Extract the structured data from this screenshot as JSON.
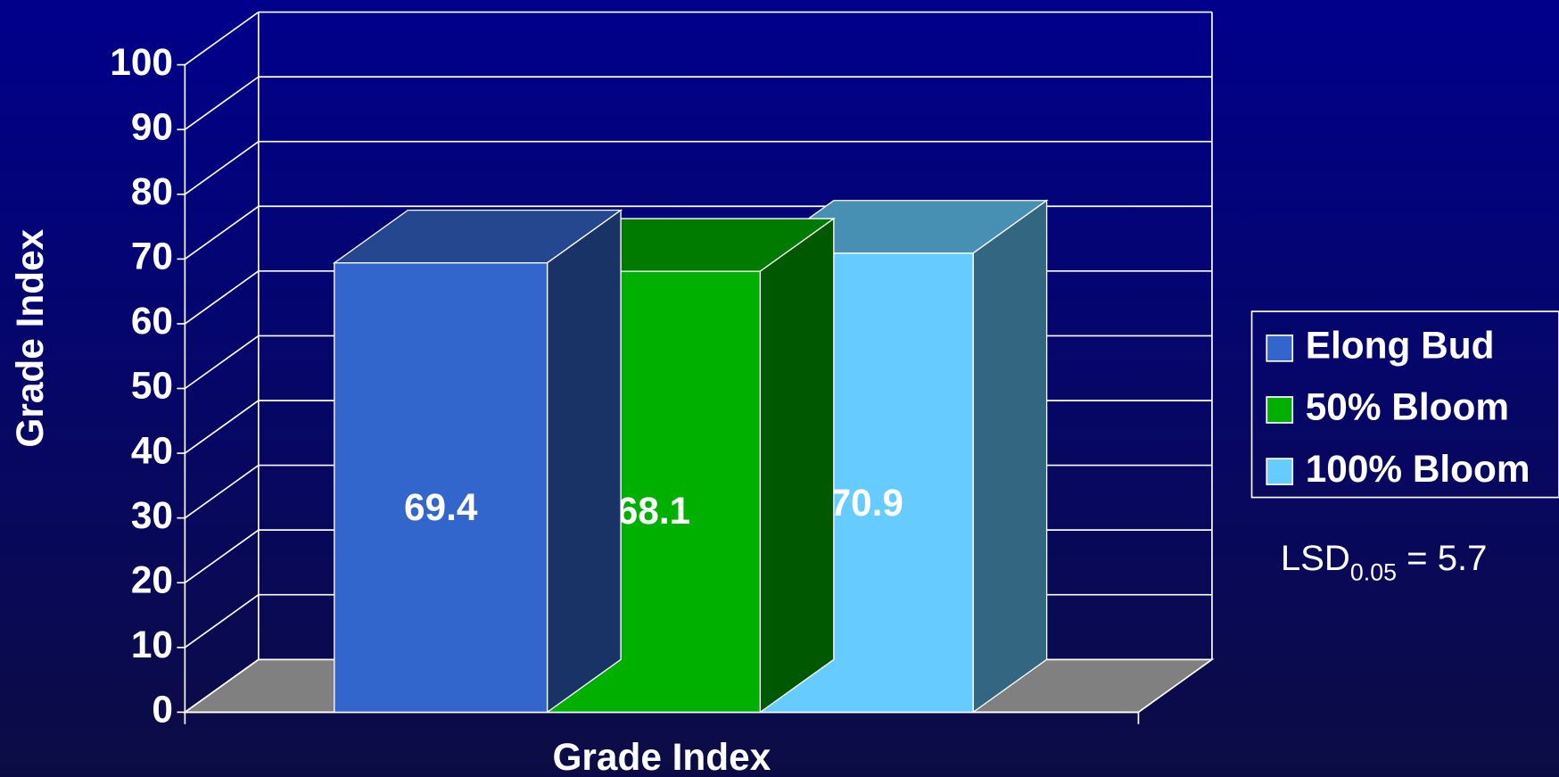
{
  "chart_data": {
    "type": "bar3d",
    "y_label": "Grade Index",
    "categories": [
      "Grade Index"
    ],
    "series": [
      {
        "name": "Elong Bud",
        "color": "#3366cc",
        "values": [
          69.4
        ]
      },
      {
        "name": "50% Bloom",
        "color": "#00b000",
        "values": [
          68.1
        ]
      },
      {
        "name": "100% Bloom",
        "color": "#66ccff",
        "values": [
          70.9
        ]
      }
    ],
    "ylim": [
      0,
      100
    ],
    "yticks": [
      0,
      10,
      20,
      30,
      40,
      50,
      60,
      70,
      80,
      90,
      100
    ],
    "grid": true,
    "legend": "right",
    "annotation": {
      "main": "LSD",
      "sub": "0.05",
      "tail": " = 5.7"
    }
  }
}
